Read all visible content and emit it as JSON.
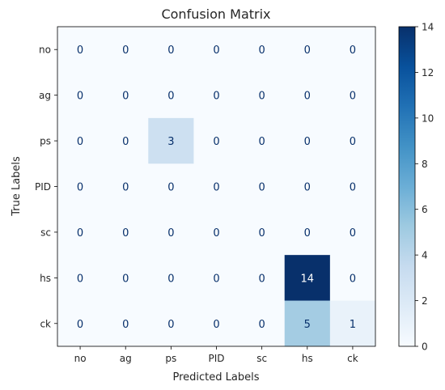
{
  "chart_data": {
    "type": "heatmap",
    "title": "Confusion Matrix",
    "xlabel": "Predicted Labels",
    "ylabel": "True Labels",
    "x_categories": [
      "no",
      "ag",
      "ps",
      "PID",
      "sc",
      "hs",
      "ck"
    ],
    "y_categories": [
      "no",
      "ag",
      "ps",
      "PID",
      "sc",
      "hs",
      "ck"
    ],
    "values": [
      [
        0,
        0,
        0,
        0,
        0,
        0,
        0
      ],
      [
        0,
        0,
        0,
        0,
        0,
        0,
        0
      ],
      [
        0,
        0,
        3,
        0,
        0,
        0,
        0
      ],
      [
        0,
        0,
        0,
        0,
        0,
        0,
        0
      ],
      [
        0,
        0,
        0,
        0,
        0,
        0,
        0
      ],
      [
        0,
        0,
        0,
        0,
        0,
        14,
        0
      ],
      [
        0,
        0,
        0,
        0,
        0,
        5,
        1
      ]
    ],
    "colorbar": {
      "range": [
        0,
        14
      ],
      "ticks": [
        "0",
        "2",
        "4",
        "6",
        "8",
        "10",
        "12",
        "14"
      ],
      "colormap": "Blues",
      "low_color": "#f7fbff",
      "high_color": "#08306b"
    },
    "grid": false
  }
}
